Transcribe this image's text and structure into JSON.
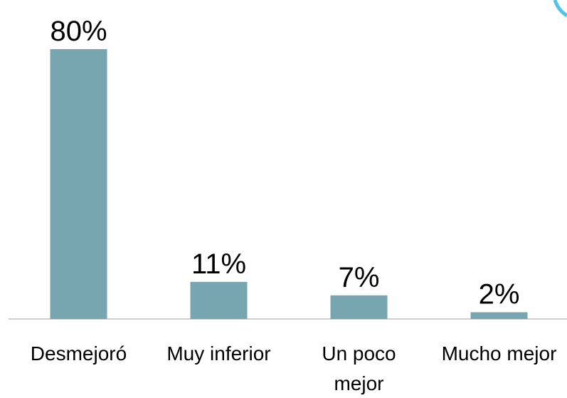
{
  "chart_data": {
    "type": "bar",
    "categories": [
      "Desmejoró",
      "Muy inferior",
      "Un poco mejor",
      "Mucho mejor"
    ],
    "values": [
      80,
      11,
      7,
      2
    ],
    "value_labels": [
      "80%",
      "11%",
      "7%",
      "2%"
    ],
    "color": "#77a5b0",
    "ylim": [
      0,
      80
    ]
  }
}
